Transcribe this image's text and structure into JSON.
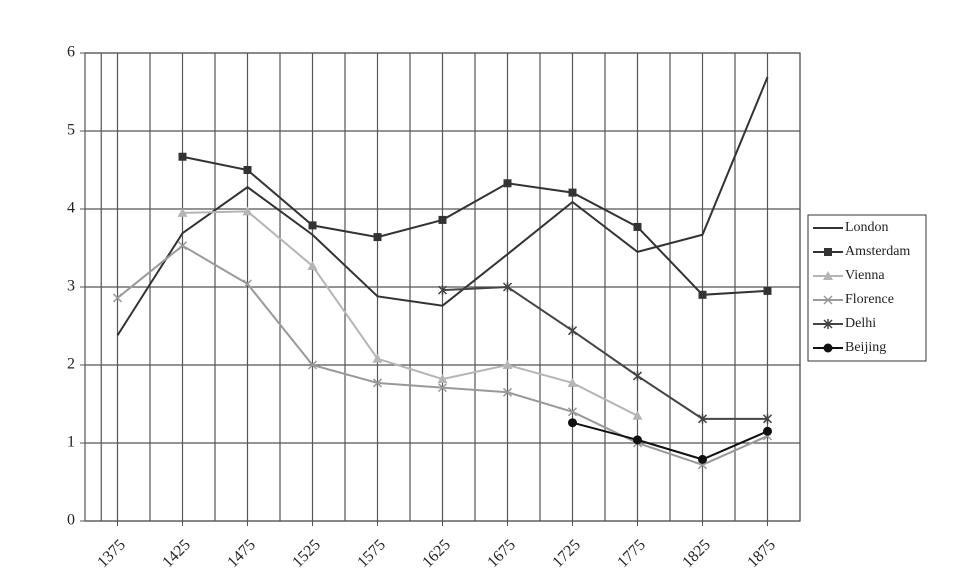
{
  "chart_data": {
    "type": "line",
    "x": [
      1375,
      1425,
      1475,
      1525,
      1575,
      1625,
      1675,
      1725,
      1775,
      1825,
      1875
    ],
    "xlim": [
      1350,
      1900
    ],
    "xticks": [
      1375,
      1425,
      1475,
      1525,
      1575,
      1625,
      1675,
      1725,
      1775,
      1825,
      1875
    ],
    "ylim": [
      0,
      6
    ],
    "yticks": [
      0,
      1,
      2,
      3,
      4,
      5,
      6
    ],
    "grid": true,
    "legend": "right",
    "series": [
      {
        "name": "London",
        "color": "#333333",
        "marker": "none",
        "values": [
          2.38,
          3.69,
          4.28,
          3.67,
          2.88,
          2.76,
          3.42,
          4.09,
          3.45,
          3.67,
          5.69
        ]
      },
      {
        "name": "Amsterdam",
        "color": "#333333",
        "marker": "square",
        "values": [
          null,
          4.67,
          4.5,
          3.79,
          3.64,
          3.86,
          4.33,
          4.21,
          3.77,
          2.9,
          2.95
        ]
      },
      {
        "name": "Vienna",
        "color": "#b5b5b5",
        "marker": "triangle",
        "values": [
          null,
          3.95,
          3.97,
          3.27,
          2.08,
          1.82,
          2.0,
          1.77,
          1.35,
          null,
          null
        ]
      },
      {
        "name": "Florence",
        "color": "#999999",
        "marker": "x",
        "values": [
          2.86,
          3.53,
          3.04,
          2.0,
          1.77,
          1.71,
          1.65,
          1.4,
          1.0,
          0.72,
          1.09
        ]
      },
      {
        "name": "Delhi",
        "color": "#444444",
        "marker": "star",
        "values": [
          null,
          null,
          null,
          null,
          null,
          2.96,
          3.0,
          2.44,
          1.86,
          1.31,
          1.31
        ]
      },
      {
        "name": "Beijing",
        "color": "#111111",
        "marker": "circle",
        "values": [
          null,
          null,
          null,
          null,
          null,
          null,
          null,
          1.26,
          1.04,
          0.79,
          1.15
        ]
      }
    ]
  }
}
